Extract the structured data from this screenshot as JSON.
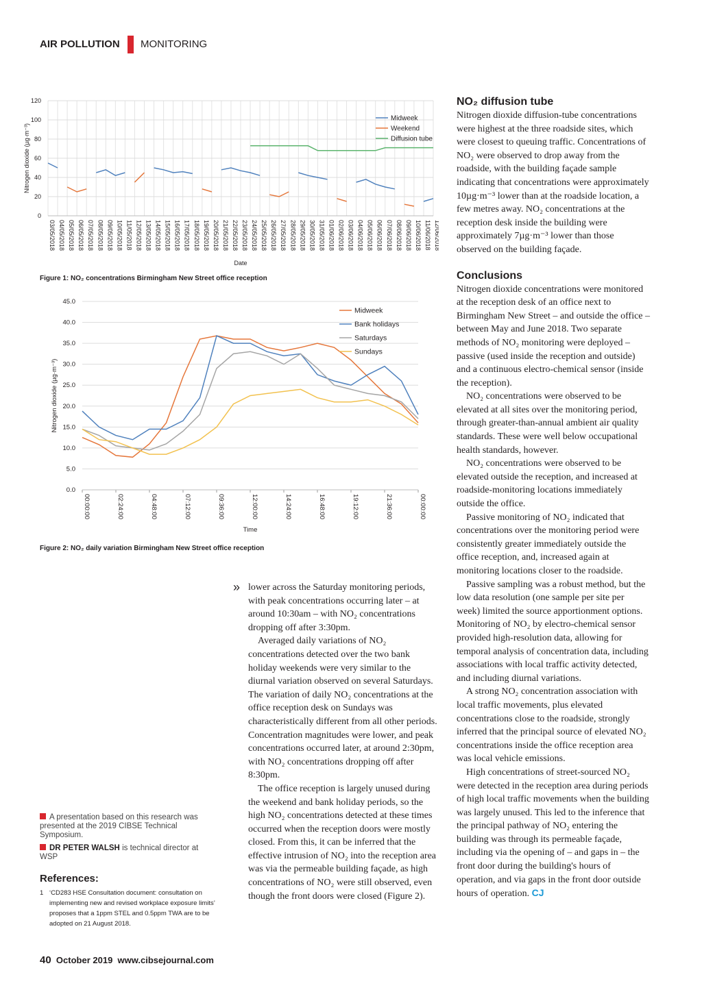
{
  "header": {
    "section": "AIR POLLUTION",
    "subsection": "MONITORING"
  },
  "chart_data": [
    {
      "type": "line",
      "x_label": "Date",
      "y_label": "Nitrogen dioxide (µg·m⁻³)",
      "caption": "Figure 1: NO₂ concentrations Birmingham New Street office reception",
      "categories": [
        "03/05/2018",
        "04/05/2018",
        "05/05/2018",
        "06/05/2018",
        "07/05/2018",
        "08/05/2018",
        "09/05/2018",
        "10/05/2018",
        "11/05/2018",
        "12/05/2018",
        "13/05/2018",
        "14/05/2018",
        "15/05/2018",
        "16/05/2018",
        "17/05/2018",
        "18/05/2018",
        "19/05/2018",
        "20/05/2018",
        "21/05/2018",
        "22/05/2018",
        "23/05/2018",
        "24/05/2018",
        "25/05/2018",
        "26/05/2018",
        "27/05/2018",
        "28/05/2018",
        "29/05/2018",
        "30/05/2018",
        "31/05/2018",
        "01/06/2018",
        "02/06/2018",
        "03/06/2018",
        "04/06/2018",
        "05/06/2018",
        "06/06/2018",
        "07/06/2018",
        "08/06/2018",
        "09/06/2018",
        "10/06/2018",
        "11/06/2018",
        "12/06/2018"
      ],
      "series": [
        {
          "name": "Midweek",
          "color": "#4f81bd",
          "values": [
            55,
            50,
            null,
            null,
            null,
            45,
            48,
            42,
            45,
            null,
            null,
            50,
            48,
            45,
            46,
            44,
            null,
            null,
            48,
            50,
            47,
            45,
            42,
            null,
            null,
            null,
            45,
            42,
            40,
            38,
            null,
            null,
            35,
            38,
            33,
            30,
            28,
            null,
            null,
            15,
            18
          ]
        },
        {
          "name": "Weekend",
          "color": "#e5763a",
          "values": [
            null,
            null,
            30,
            25,
            28,
            null,
            null,
            null,
            null,
            35,
            45,
            null,
            null,
            null,
            null,
            null,
            28,
            25,
            null,
            null,
            null,
            null,
            null,
            22,
            20,
            25,
            null,
            null,
            null,
            null,
            18,
            15,
            null,
            null,
            null,
            null,
            null,
            12,
            10,
            null,
            null
          ]
        },
        {
          "name": "Diffusion tube",
          "color": "#5cb46e",
          "values": [
            null,
            null,
            null,
            null,
            null,
            null,
            null,
            null,
            null,
            null,
            null,
            null,
            null,
            null,
            null,
            null,
            null,
            null,
            null,
            null,
            null,
            73,
            73,
            73,
            73,
            73,
            73,
            73,
            68,
            68,
            68,
            68,
            68,
            68,
            68,
            71,
            71,
            71,
            71,
            71,
            71
          ]
        }
      ],
      "ylim": [
        0,
        120
      ],
      "yticks": [
        0,
        20,
        40,
        60,
        80,
        100,
        120
      ],
      "grid": true,
      "legend": "top-right"
    },
    {
      "type": "line",
      "x_label": "Time",
      "y_label": "Nitrogen dioxide (µg·m⁻³)",
      "caption": "Figure 2: NO₂ daily variation Birmingham New Street office reception",
      "x": [
        0,
        1.2,
        2.4,
        3.6,
        4.8,
        6,
        7.2,
        8.4,
        9.6,
        10.8,
        12,
        13.2,
        14.4,
        15.6,
        16.8,
        18,
        19.2,
        20.4,
        21.6,
        22.8,
        24
      ],
      "xlim": [
        0,
        24
      ],
      "xticks": [
        {
          "value": 0,
          "label": "00:00:00"
        },
        {
          "value": 2.4,
          "label": "02:24:00"
        },
        {
          "value": 4.8,
          "label": "04:48:00"
        },
        {
          "value": 7.2,
          "label": "07:12:00"
        },
        {
          "value": 9.6,
          "label": "09:36:00"
        },
        {
          "value": 12,
          "label": "12:00:00"
        },
        {
          "value": 14.4,
          "label": "14:24:00"
        },
        {
          "value": 16.8,
          "label": "16:48:00"
        },
        {
          "value": 19.2,
          "label": "19:12:00"
        },
        {
          "value": 21.6,
          "label": "21:36:00"
        },
        {
          "value": 24,
          "label": "00:00:00"
        }
      ],
      "series": [
        {
          "name": "Midweek",
          "color": "#e5763a",
          "values": [
            12.5,
            10.8,
            8.2,
            7.8,
            11,
            16,
            27,
            36,
            36.8,
            36,
            36,
            34,
            33.2,
            34,
            35,
            34,
            31,
            27,
            23,
            20.5,
            16
          ]
        },
        {
          "name": "Bank holidays",
          "color": "#4f81bd",
          "values": [
            18.8,
            15,
            13,
            12,
            14.5,
            14.5,
            16.5,
            22,
            36.8,
            35,
            35,
            33,
            32,
            32.5,
            27.5,
            26,
            25,
            27.5,
            29.5,
            26,
            18
          ]
        },
        {
          "name": "Saturdays",
          "color": "#a5a5a5",
          "values": [
            14.5,
            13,
            10.5,
            10,
            9.5,
            11,
            14,
            18,
            29,
            32.5,
            33,
            32,
            30,
            32.5,
            29,
            25,
            24,
            23,
            22.5,
            21,
            17
          ]
        },
        {
          "name": "Sundays",
          "color": "#f2c14e",
          "values": [
            14.5,
            12,
            11.5,
            10,
            8.5,
            8.5,
            10,
            12,
            15,
            20.5,
            22.5,
            23,
            23.5,
            24,
            22,
            21,
            21,
            21.5,
            20,
            18,
            15.5
          ]
        }
      ],
      "ylim": [
        0,
        45
      ],
      "yticks": [
        {
          "value": 0,
          "label": "0.0"
        },
        {
          "value": 5,
          "label": "5.0"
        },
        {
          "value": 10,
          "label": "10.0"
        },
        {
          "value": 15,
          "label": "15.0"
        },
        {
          "value": 20,
          "label": "20.0"
        },
        {
          "value": 25,
          "label": "25.0"
        },
        {
          "value": 30,
          "label": "30.0"
        },
        {
          "value": 35,
          "label": "35.0"
        },
        {
          "value": 40,
          "label": "40.0"
        },
        {
          "value": 45,
          "label": "45.0"
        }
      ],
      "grid": true,
      "legend": "top-right"
    }
  ],
  "middle_column": {
    "continuation_mark": "»",
    "paragraphs": [
      "lower across the Saturday monitoring periods, with peak concentrations occurring later – at around 10:30am – with NO₂ concentrations dropping off after 3:30pm.",
      "Averaged daily variations of NO₂ concentrations detected over the two bank holiday weekends were very similar to the diurnal variation observed on several Saturdays. The variation of daily NO₂ concentrations at the office reception desk on Sundays was characteristically different from all other periods. Concentration magnitudes were lower, and peak concentrations occurred later, at around 2:30pm, with NO₂ concentrations dropping off after 8:30pm.",
      "The office reception is largely unused during the weekend and bank holiday periods, so the high NO₂ concentrations detected at these times occurred when the reception doors were mostly closed. From this, it can be inferred that the effective intrusion of NO₂ into the reception area was via the permeable building façade, as high concentrations of NO₂ were still observed, even though the front doors were closed (Figure 2)."
    ]
  },
  "right_column": {
    "sections": [
      {
        "heading": "NO₂ diffusion tube",
        "paragraphs": [
          "Nitrogen dioxide diffusion-tube concentrations were highest at the three roadside sites, which were closest to queuing traffic. Concentrations of NO₂ were observed to drop away from the roadside, with the building façade sample indicating that concentrations were approximately 10µg·m⁻³ lower than at the roadside location, a few metres away. NO₂ concentrations at the reception desk inside the building were approximately 7µg·m⁻³ lower than those observed on the building façade."
        ]
      },
      {
        "heading": "Conclusions",
        "paragraphs": [
          "Nitrogen dioxide concentrations were monitored at the reception desk of an office next to Birmingham New Street – and outside the office – between May and June 2018. Two separate methods of NO₂ monitoring were deployed – passive (used inside the reception and outside) and a continuous electro-chemical sensor (inside the reception).",
          "NO₂ concentrations were observed to be elevated at all sites over the monitoring period, through greater-than-annual ambient air quality standards. These were well below occupational health standards, however.",
          "NO₂ concentrations were observed to be elevated outside the reception, and increased at roadside-monitoring locations immediately outside the office.",
          "Passive monitoring of NO₂ indicated that concentrations over the monitoring period were consistently greater immediately outside the office reception, and, increased again at monitoring locations closer to the roadside.",
          "Passive sampling was a robust method, but the low data resolution (one sample per site per week) limited the source apportionment options. Monitoring of NO₂ by electro-chemical sensor provided high-resolution data, allowing for temporal analysis of concentration data, including associations with local traffic activity detected, and including diurnal variations.",
          "A strong NO₂ concentration association with local traffic movements, plus elevated concentrations close to the roadside, strongly inferred that the principal source of elevated NO₂ concentrations inside the office reception area was local vehicle emissions.",
          "High concentrations of street-sourced NO₂ were detected in the reception area during periods of high local traffic movements when the building was largely unused. This led to the inference that the principal pathway of NO₂ entering the building was through its permeable façade, including via the opening of – and gaps in – the front door during the building's hours of operation, and via gaps in the front door outside hours of operation."
        ]
      }
    ],
    "end_mark": "CJ"
  },
  "sidebar": {
    "note": "A presentation based on this research was presented at the 2019 CIBSE Technical Symposium.",
    "author_name": "DR PETER WALSH",
    "author_role": " is technical director at WSP",
    "references_title": "References:",
    "references": [
      {
        "number": "1",
        "text": "‘CD283 HSE Consultation document: consultation on implementing new and revised workplace exposure limits’ proposes that a 1ppm STEL and 0.5ppm TWA are to be adopted on 21 August 2018."
      }
    ]
  },
  "footer": {
    "page": "40",
    "issue": "October 2019",
    "website": "www.cibsejournal.com"
  }
}
